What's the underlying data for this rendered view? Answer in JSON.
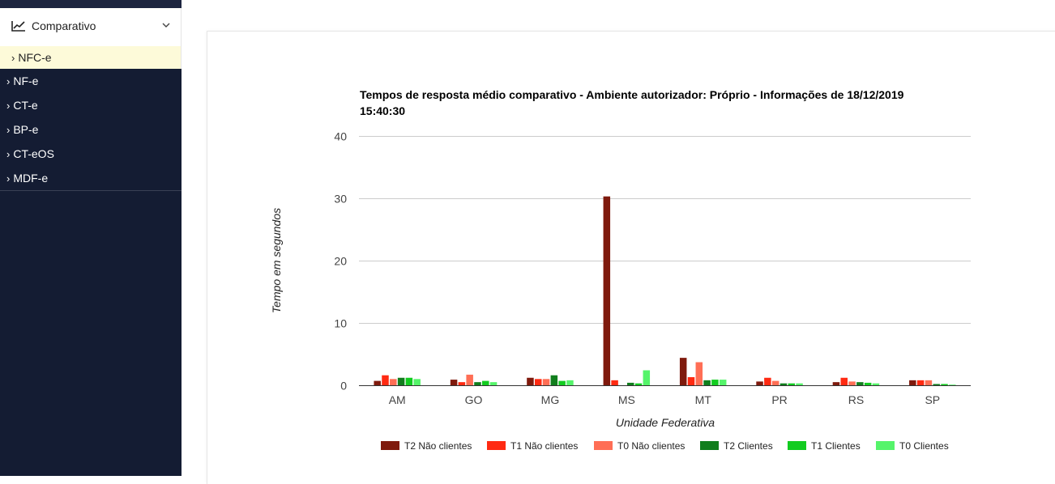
{
  "sidebar": {
    "group_label": "Comparativo",
    "group_icon": "line-chart-icon",
    "active_item": "NFC-e",
    "items": [
      "NF-e",
      "CT-e",
      "BP-e",
      "CT-eOS",
      "MDF-e"
    ]
  },
  "chart_data": {
    "type": "bar",
    "title_line1": "Tempos de resposta médio comparativo - Ambiente autorizador: Próprio - Informações de 18/12/2019",
    "title_line2": "15:40:30",
    "xlabel": "Unidade Federativa",
    "ylabel": "Tempo em segundos",
    "ylim": [
      0,
      40
    ],
    "yticks": [
      0,
      10,
      20,
      30,
      40
    ],
    "grid": true,
    "legend_position": "bottom",
    "categories": [
      "AM",
      "GO",
      "MG",
      "MS",
      "MT",
      "PR",
      "RS",
      "SP"
    ],
    "series": [
      {
        "name": "T2 Não clientes",
        "color": "#7f1a0d",
        "values": [
          0.7,
          0.9,
          1.2,
          30.3,
          4.4,
          0.6,
          0.5,
          0.8
        ]
      },
      {
        "name": "T1 Não clientes",
        "color": "#ff2a12",
        "values": [
          1.6,
          0.5,
          1.0,
          0.8,
          1.3,
          1.2,
          1.2,
          0.8
        ]
      },
      {
        "name": "T0 Não clientes",
        "color": "#ff6e55",
        "values": [
          1.0,
          1.7,
          1.0,
          0.0,
          3.7,
          0.7,
          0.6,
          0.8
        ]
      },
      {
        "name": "T2 Clientes",
        "color": "#117e1d",
        "values": [
          1.2,
          0.5,
          1.6,
          0.4,
          0.8,
          0.3,
          0.5,
          0.2
        ]
      },
      {
        "name": "T1 Clientes",
        "color": "#12cc20",
        "values": [
          1.2,
          0.7,
          0.7,
          0.3,
          0.9,
          0.3,
          0.4,
          0.2
        ]
      },
      {
        "name": "T0 Clientes",
        "color": "#55f46a",
        "values": [
          1.0,
          0.5,
          0.8,
          2.4,
          0.9,
          0.3,
          0.3,
          0.1
        ]
      }
    ]
  }
}
